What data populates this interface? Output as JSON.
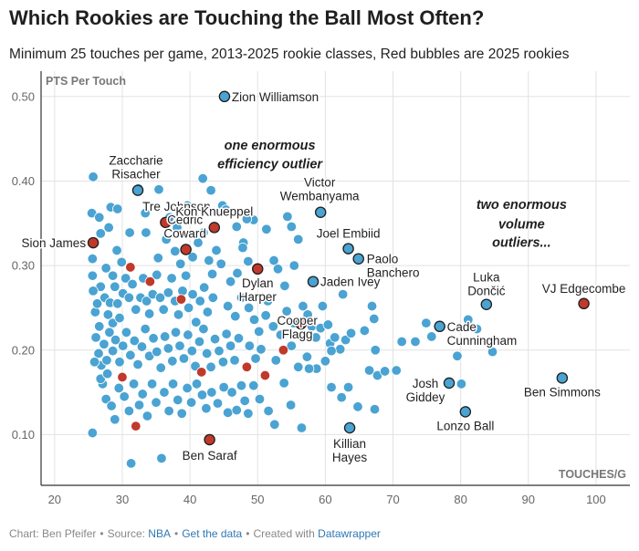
{
  "header": {
    "title": "Which Rookies are Touching the Ball Most Often?",
    "subtitle": "Minimum 25 touches per game, 2013-2025 rookie classes, Red bubbles are 2025 rookies"
  },
  "footer": {
    "chart_credit": "Chart: Ben Pfeifer",
    "separator": "•",
    "source_prefix": "Source:",
    "source_link": "NBA",
    "data_link": "Get the data",
    "created_prefix": "Created with",
    "tool_link": "Datawrapper"
  },
  "colors": {
    "dot": "#4aa3d2",
    "highlight_dot": "#c0392b",
    "outline": "#1f1f1f",
    "grid": "#e2e2e2",
    "axis": "#333333",
    "tick_text": "#666666"
  },
  "chart_data": {
    "type": "scatter",
    "title": "Which Rookies are Touching the Ball Most Often?",
    "xlabel": "TOUCHES/G",
    "ylabel": "PTS Per Touch",
    "xlim": [
      18,
      105
    ],
    "ylim": [
      0.04,
      0.53
    ],
    "xticks": [
      20,
      30,
      40,
      50,
      60,
      70,
      80,
      90,
      100
    ],
    "yticks": [
      0.1,
      0.2,
      0.3,
      0.4,
      0.5
    ],
    "ytick_labels": [
      "0.10",
      "0.20",
      "0.30",
      "0.40",
      "0.50"
    ],
    "grid": true,
    "labeled_points": [
      {
        "name": "Zion Williamson",
        "x": 45.1,
        "y": 0.5,
        "rookie_2025": false
      },
      {
        "name": "Tre Johnson",
        "x": 36.4,
        "y": 0.351,
        "rookie_2025": true
      },
      {
        "name": "Cedric Coward",
        "x": 39.4,
        "y": 0.319,
        "rookie_2025": true
      },
      {
        "name": "Zaccharie Risacher",
        "x": 32.3,
        "y": 0.389,
        "rookie_2025": false
      },
      {
        "name": "Kon Knueppel",
        "x": 43.6,
        "y": 0.345,
        "rookie_2025": true
      },
      {
        "name": "Victor Wembanyama",
        "x": 59.3,
        "y": 0.363,
        "rookie_2025": false
      },
      {
        "name": "Joel Embiid",
        "x": 63.4,
        "y": 0.32,
        "rookie_2025": false
      },
      {
        "name": "Paolo Banchero",
        "x": 64.9,
        "y": 0.308,
        "rookie_2025": false
      },
      {
        "name": "Sion James",
        "x": 25.7,
        "y": 0.327,
        "rookie_2025": true
      },
      {
        "name": "Dylan Harper",
        "x": 50.0,
        "y": 0.296,
        "rookie_2025": true
      },
      {
        "name": "Jaden Ivey",
        "x": 58.2,
        "y": 0.281,
        "rookie_2025": false
      },
      {
        "name": "Cooper Flagg",
        "x": 56.4,
        "y": 0.231,
        "rookie_2025": true
      },
      {
        "name": "Luka Dončić",
        "x": 83.8,
        "y": 0.254,
        "rookie_2025": false
      },
      {
        "name": "VJ Edgecombe",
        "x": 98.2,
        "y": 0.255,
        "rookie_2025": true
      },
      {
        "name": "Cade Cunningham",
        "x": 76.9,
        "y": 0.228,
        "rookie_2025": false
      },
      {
        "name": "Josh Giddey",
        "x": 78.3,
        "y": 0.161,
        "rookie_2025": false
      },
      {
        "name": "Lonzo Ball",
        "x": 80.7,
        "y": 0.127,
        "rookie_2025": false
      },
      {
        "name": "Ben Simmons",
        "x": 95.0,
        "y": 0.167,
        "rookie_2025": false
      },
      {
        "name": "Killian Hayes",
        "x": 63.6,
        "y": 0.108,
        "rookie_2025": false
      },
      {
        "name": "Ben Saraf",
        "x": 42.9,
        "y": 0.094,
        "rookie_2025": true
      }
    ],
    "unlabeled_2025_points": [
      [
        31.2,
        0.298
      ],
      [
        34.1,
        0.281
      ],
      [
        38.7,
        0.26
      ],
      [
        30.0,
        0.168
      ],
      [
        32.0,
        0.11
      ],
      [
        41.7,
        0.174
      ],
      [
        48.4,
        0.18
      ],
      [
        51.1,
        0.17
      ],
      [
        53.8,
        0.2
      ]
    ],
    "background_points": [
      [
        25.7,
        0.405
      ],
      [
        25.5,
        0.362
      ],
      [
        26.6,
        0.357
      ],
      [
        26.8,
        0.338
      ],
      [
        28.0,
        0.345
      ],
      [
        28.3,
        0.369
      ],
      [
        25.6,
        0.308
      ],
      [
        25.6,
        0.288
      ],
      [
        26.8,
        0.275
      ],
      [
        27.6,
        0.297
      ],
      [
        28.6,
        0.288
      ],
      [
        29.2,
        0.318
      ],
      [
        29.9,
        0.304
      ],
      [
        25.7,
        0.27
      ],
      [
        26.0,
        0.245
      ],
      [
        26.3,
        0.255
      ],
      [
        26.6,
        0.228
      ],
      [
        27.4,
        0.262
      ],
      [
        27.9,
        0.242
      ],
      [
        28.2,
        0.256
      ],
      [
        28.6,
        0.232
      ],
      [
        28.9,
        0.275
      ],
      [
        29.3,
        0.255
      ],
      [
        29.6,
        0.238
      ],
      [
        30.1,
        0.267
      ],
      [
        30.5,
        0.285
      ],
      [
        31.0,
        0.262
      ],
      [
        31.5,
        0.278
      ],
      [
        32.0,
        0.248
      ],
      [
        32.7,
        0.262
      ],
      [
        33.1,
        0.285
      ],
      [
        33.6,
        0.258
      ],
      [
        34.0,
        0.243
      ],
      [
        34.5,
        0.266
      ],
      [
        35.1,
        0.289
      ],
      [
        35.6,
        0.262
      ],
      [
        36.1,
        0.248
      ],
      [
        36.8,
        0.268
      ],
      [
        37.3,
        0.285
      ],
      [
        37.8,
        0.258
      ],
      [
        38.3,
        0.242
      ],
      [
        38.9,
        0.27
      ],
      [
        39.4,
        0.288
      ],
      [
        39.8,
        0.25
      ],
      [
        40.4,
        0.266
      ],
      [
        40.9,
        0.233
      ],
      [
        41.5,
        0.258
      ],
      [
        42.1,
        0.274
      ],
      [
        42.6,
        0.245
      ],
      [
        43.4,
        0.262
      ],
      [
        26.1,
        0.215
      ],
      [
        26.5,
        0.196
      ],
      [
        26.9,
        0.182
      ],
      [
        27.3,
        0.207
      ],
      [
        27.7,
        0.188
      ],
      [
        28.1,
        0.221
      ],
      [
        28.6,
        0.199
      ],
      [
        29.0,
        0.212
      ],
      [
        29.6,
        0.186
      ],
      [
        30.1,
        0.205
      ],
      [
        30.6,
        0.221
      ],
      [
        31.2,
        0.194
      ],
      [
        31.8,
        0.211
      ],
      [
        32.3,
        0.183
      ],
      [
        32.9,
        0.204
      ],
      [
        33.4,
        0.225
      ],
      [
        34.0,
        0.193
      ],
      [
        34.6,
        0.214
      ],
      [
        35.1,
        0.198
      ],
      [
        35.7,
        0.179
      ],
      [
        36.3,
        0.216
      ],
      [
        36.8,
        0.202
      ],
      [
        37.4,
        0.187
      ],
      [
        37.9,
        0.221
      ],
      [
        38.5,
        0.205
      ],
      [
        39.1,
        0.19
      ],
      [
        39.7,
        0.218
      ],
      [
        40.3,
        0.199
      ],
      [
        40.8,
        0.181
      ],
      [
        41.4,
        0.21
      ],
      [
        42.0,
        0.225
      ],
      [
        42.5,
        0.196
      ],
      [
        43.1,
        0.18
      ],
      [
        43.7,
        0.213
      ],
      [
        44.3,
        0.199
      ],
      [
        44.9,
        0.186
      ],
      [
        45.4,
        0.219
      ],
      [
        46.0,
        0.205
      ],
      [
        46.6,
        0.188
      ],
      [
        47.2,
        0.214
      ],
      [
        25.6,
        0.102
      ],
      [
        27.1,
        0.16
      ],
      [
        27.6,
        0.142
      ],
      [
        28.4,
        0.134
      ],
      [
        28.9,
        0.118
      ],
      [
        29.5,
        0.155
      ],
      [
        30.3,
        0.145
      ],
      [
        31.0,
        0.128
      ],
      [
        31.3,
        0.066
      ],
      [
        31.7,
        0.16
      ],
      [
        32.5,
        0.135
      ],
      [
        33.0,
        0.148
      ],
      [
        33.7,
        0.122
      ],
      [
        34.4,
        0.16
      ],
      [
        35.0,
        0.138
      ],
      [
        35.8,
        0.072
      ],
      [
        36.2,
        0.15
      ],
      [
        36.9,
        0.128
      ],
      [
        37.5,
        0.16
      ],
      [
        38.2,
        0.141
      ],
      [
        38.8,
        0.125
      ],
      [
        39.6,
        0.155
      ],
      [
        40.2,
        0.138
      ],
      [
        41.0,
        0.16
      ],
      [
        41.8,
        0.147
      ],
      [
        42.4,
        0.131
      ],
      [
        43.2,
        0.15
      ],
      [
        44.1,
        0.137
      ],
      [
        45.0,
        0.156
      ],
      [
        45.6,
        0.126
      ],
      [
        46.2,
        0.15
      ],
      [
        46.9,
        0.129
      ],
      [
        47.6,
        0.158
      ],
      [
        48.1,
        0.14
      ],
      [
        48.6,
        0.125
      ],
      [
        25.9,
        0.186
      ],
      [
        26.8,
        0.166
      ],
      [
        27.8,
        0.172
      ],
      [
        33.4,
        0.362
      ],
      [
        31.1,
        0.339
      ],
      [
        33.5,
        0.339
      ],
      [
        35.3,
        0.309
      ],
      [
        36.5,
        0.331
      ],
      [
        37.8,
        0.317
      ],
      [
        38.6,
        0.302
      ],
      [
        40.4,
        0.31
      ],
      [
        41.2,
        0.327
      ],
      [
        42.0,
        0.339
      ],
      [
        42.8,
        0.306
      ],
      [
        43.3,
        0.29
      ],
      [
        41.9,
        0.403
      ],
      [
        43.1,
        0.389
      ],
      [
        44.8,
        0.371
      ],
      [
        40.6,
        0.358
      ],
      [
        43.9,
        0.318
      ],
      [
        44.6,
        0.302
      ],
      [
        46.0,
        0.281
      ],
      [
        47.0,
        0.291
      ],
      [
        47.9,
        0.327
      ],
      [
        48.6,
        0.305
      ],
      [
        49.4,
        0.354
      ],
      [
        48.4,
        0.355
      ],
      [
        51.3,
        0.343
      ],
      [
        52.4,
        0.306
      ],
      [
        53.0,
        0.296
      ],
      [
        54.4,
        0.358
      ],
      [
        55.0,
        0.346
      ],
      [
        56.0,
        0.331
      ],
      [
        55.4,
        0.3
      ],
      [
        54.0,
        0.276
      ],
      [
        45.6,
        0.252
      ],
      [
        46.7,
        0.24
      ],
      [
        47.6,
        0.262
      ],
      [
        48.7,
        0.25
      ],
      [
        49.5,
        0.236
      ],
      [
        50.2,
        0.222
      ],
      [
        51.2,
        0.241
      ],
      [
        51.5,
        0.258
      ],
      [
        52.3,
        0.228
      ],
      [
        53.4,
        0.218
      ],
      [
        54.3,
        0.246
      ],
      [
        55.3,
        0.232
      ],
      [
        56.7,
        0.252
      ],
      [
        57.4,
        0.242
      ],
      [
        58.0,
        0.228
      ],
      [
        58.6,
        0.215
      ],
      [
        59.3,
        0.226
      ],
      [
        59.6,
        0.252
      ],
      [
        60.4,
        0.23
      ],
      [
        60.7,
        0.208
      ],
      [
        61.4,
        0.215
      ],
      [
        62.2,
        0.201
      ],
      [
        63.0,
        0.212
      ],
      [
        63.8,
        0.22
      ],
      [
        48.8,
        0.205
      ],
      [
        49.7,
        0.19
      ],
      [
        50.5,
        0.201
      ],
      [
        52.7,
        0.188
      ],
      [
        55.0,
        0.205
      ],
      [
        57.3,
        0.192
      ],
      [
        58.7,
        0.178
      ],
      [
        60.0,
        0.187
      ],
      [
        60.9,
        0.199
      ],
      [
        56.0,
        0.18
      ],
      [
        57.6,
        0.178
      ],
      [
        49.4,
        0.158
      ],
      [
        50.3,
        0.142
      ],
      [
        51.6,
        0.128
      ],
      [
        52.5,
        0.112
      ],
      [
        53.9,
        0.161
      ],
      [
        54.9,
        0.135
      ],
      [
        56.5,
        0.108
      ],
      [
        60.9,
        0.156
      ],
      [
        62.4,
        0.144
      ],
      [
        63.4,
        0.156
      ],
      [
        64.8,
        0.133
      ],
      [
        67.3,
        0.13
      ],
      [
        66.5,
        0.176
      ],
      [
        67.7,
        0.17
      ],
      [
        67.4,
        0.2
      ],
      [
        68.8,
        0.175
      ],
      [
        70.5,
        0.176
      ],
      [
        71.3,
        0.21
      ],
      [
        73.3,
        0.21
      ],
      [
        74.9,
        0.232
      ],
      [
        75.7,
        0.216
      ],
      [
        79.5,
        0.193
      ],
      [
        80.1,
        0.16
      ],
      [
        81.1,
        0.236
      ],
      [
        82.4,
        0.225
      ],
      [
        84.7,
        0.198
      ],
      [
        65.8,
        0.223
      ],
      [
        66.9,
        0.252
      ],
      [
        67.2,
        0.237
      ],
      [
        62.6,
        0.266
      ],
      [
        46.9,
        0.346
      ],
      [
        47.8,
        0.321
      ],
      [
        45.3,
        0.366
      ],
      [
        39.6,
        0.371
      ],
      [
        35.4,
        0.39
      ],
      [
        32.4,
        0.391
      ],
      [
        29.3,
        0.367
      ],
      [
        40.1,
        0.337
      ],
      [
        37.0,
        0.357
      ],
      [
        38.1,
        0.345
      ]
    ],
    "annotations": [
      {
        "text": "one enormous",
        "x": 51.8,
        "y": 0.437
      },
      {
        "text": "efficiency outlier",
        "x": 51.8,
        "y": 0.415
      },
      {
        "text": "two enormous",
        "x": 89.0,
        "y": 0.367
      },
      {
        "text": "volume",
        "x": 89.0,
        "y": 0.344
      },
      {
        "text": "outliers...",
        "x": 89.0,
        "y": 0.322
      }
    ]
  }
}
